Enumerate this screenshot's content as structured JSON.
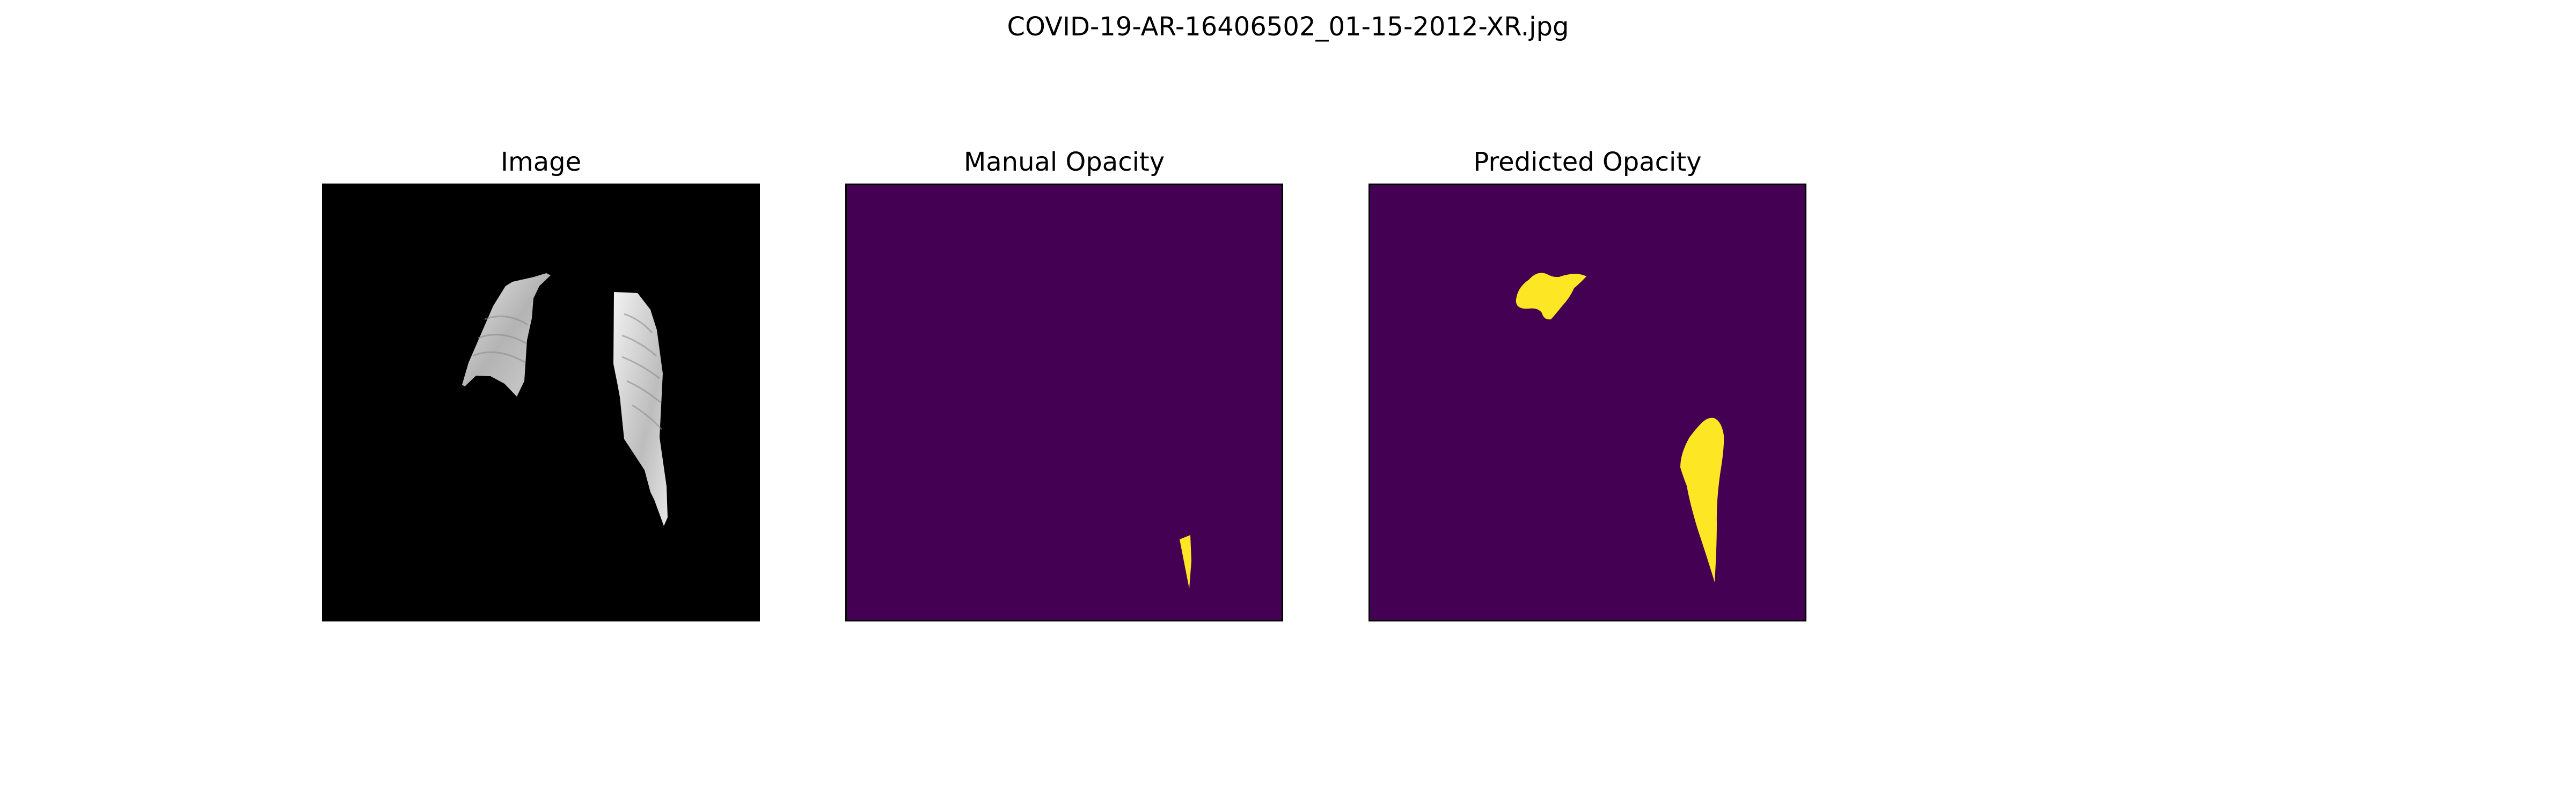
{
  "figure": {
    "suptitle": "COVID-19-AR-16406502_01-15-2012-XR.jpg",
    "panels": [
      {
        "title": "Image",
        "content": "lung-masked chest x-ray (grayscale)",
        "background": "#000000"
      },
      {
        "title": "Manual Opacity",
        "content": "segmentation mask",
        "background": "#440154",
        "mask_color": "#fde725"
      },
      {
        "title": "Predicted Opacity",
        "content": "segmentation mask",
        "background": "#440154",
        "mask_color": "#fde725"
      }
    ]
  }
}
